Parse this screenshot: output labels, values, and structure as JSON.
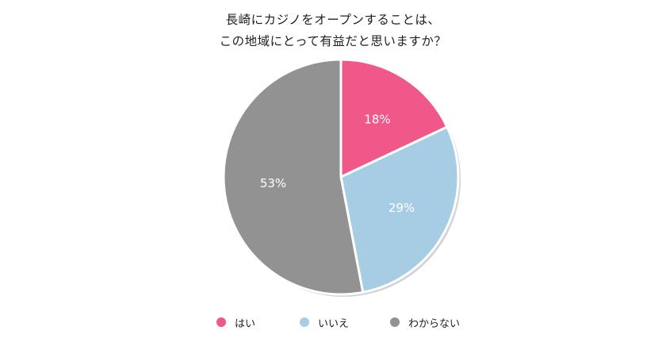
{
  "title_lines": [
    "長崎にカジノをオープンすることは、",
    "この地域にとって有益だと思いますか？"
  ],
  "chart_data": {
    "type": "pie",
    "title": "長崎にカジノをオープンすることは、この地域にとって有益だと思いますか？",
    "slices": [
      {
        "label": "はい",
        "value": 18,
        "value_label": "18%",
        "color": "#f0588a"
      },
      {
        "label": "いいえ",
        "value": 29,
        "value_label": "29%",
        "color": "#a6cde3"
      },
      {
        "label": "わからない",
        "value": 53,
        "value_label": "53%",
        "color": "#929292"
      }
    ],
    "start": "12 o'clock",
    "direction": "clockwise",
    "legend_position": "bottom"
  }
}
